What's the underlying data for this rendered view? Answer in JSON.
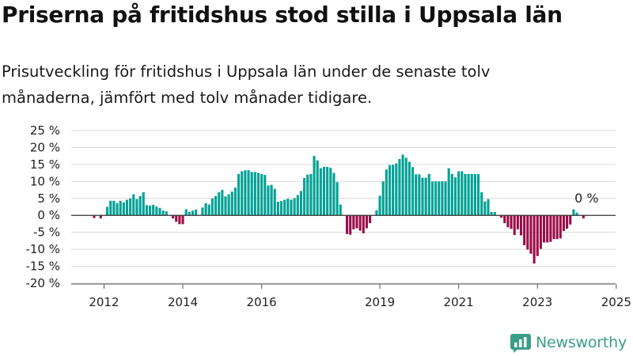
{
  "title": "Priserna på fritidshus stod stilla i Uppsala län",
  "subtitle": "Prisutveckling för fritidshus i Uppsala län under de senaste tolv månaderna, jämfört med tolv månader tidigare.",
  "brand": {
    "name": "Newsworthy"
  },
  "colors": {
    "positive": "#00a195",
    "negative": "#9b0d48",
    "grid": "#d9d9d9",
    "brand": "#3a9e86"
  },
  "chart_data": {
    "type": "bar",
    "title": "",
    "xlabel": "",
    "ylabel": "",
    "ylim": [
      -20,
      25
    ],
    "y_ticks": [
      25,
      20,
      15,
      10,
      5,
      0,
      -5,
      -10,
      -15,
      -20
    ],
    "y_tick_labels": [
      "25 %",
      "20 %",
      "15 %",
      "10 %",
      "5 %",
      "0 %",
      "-5 %",
      "-10 %",
      "-15 %",
      "-20 %"
    ],
    "x_tick_labels": [
      "2012",
      "2014",
      "2016",
      "2019",
      "2021",
      "2023",
      "2025"
    ],
    "x_tick_years": [
      2012,
      2014,
      2016,
      2019,
      2021,
      2023,
      2025
    ],
    "start_year": 2011,
    "start_month": 10,
    "annotation": "0 %",
    "values": [
      -0.8,
      0,
      -0.9,
      0,
      2.5,
      4.3,
      4.3,
      3.6,
      4.3,
      3.8,
      4.6,
      5.0,
      6.2,
      4.8,
      5.7,
      6.8,
      3.0,
      2.9,
      3.1,
      2.6,
      2.2,
      1.4,
      1.2,
      0,
      -0.9,
      -1.9,
      -2.6,
      -2.6,
      1.8,
      1.0,
      1.4,
      1.7,
      0,
      2.3,
      3.6,
      3.2,
      5.0,
      5.7,
      6.8,
      7.5,
      5.6,
      6.2,
      7.0,
      8.2,
      12.2,
      13.0,
      13.3,
      13.3,
      12.8,
      12.8,
      12.5,
      12.2,
      11.9,
      8.8,
      9.0,
      7.8,
      4.0,
      4.2,
      4.6,
      4.9,
      4.6,
      5.1,
      6.0,
      7.2,
      11.0,
      12.0,
      12.2,
      17.5,
      16.2,
      13.9,
      14.3,
      14.3,
      14.0,
      12.5,
      9.8,
      3.2,
      0,
      -5.5,
      -5.7,
      -4.1,
      -3.8,
      -4.5,
      -5.3,
      -3.8,
      -2.3,
      0,
      1.5,
      5.8,
      10.0,
      13.5,
      14.8,
      14.9,
      15.3,
      16.6,
      17.9,
      17.0,
      15.8,
      14.2,
      12.1,
      12.1,
      11.1,
      11.1,
      12.2,
      10.0,
      10.0,
      10.0,
      10.0,
      10.0,
      13.9,
      12.2,
      11.2,
      13.0,
      13.0,
      12.2,
      12.2,
      12.2,
      12.2,
      12.2,
      6.8,
      4.1,
      4.8,
      1.0,
      1.0,
      0,
      -0.7,
      -2.3,
      -3.5,
      -4.0,
      -5.8,
      -4.1,
      -5.9,
      -8.8,
      -10.1,
      -11.3,
      -14.2,
      -12.0,
      -9.9,
      -8.0,
      -8.0,
      -7.8,
      -7.0,
      -7.0,
      -6.8,
      -4.6,
      -3.9,
      -2.7,
      1.8,
      0.8,
      0,
      -0.9
    ]
  }
}
